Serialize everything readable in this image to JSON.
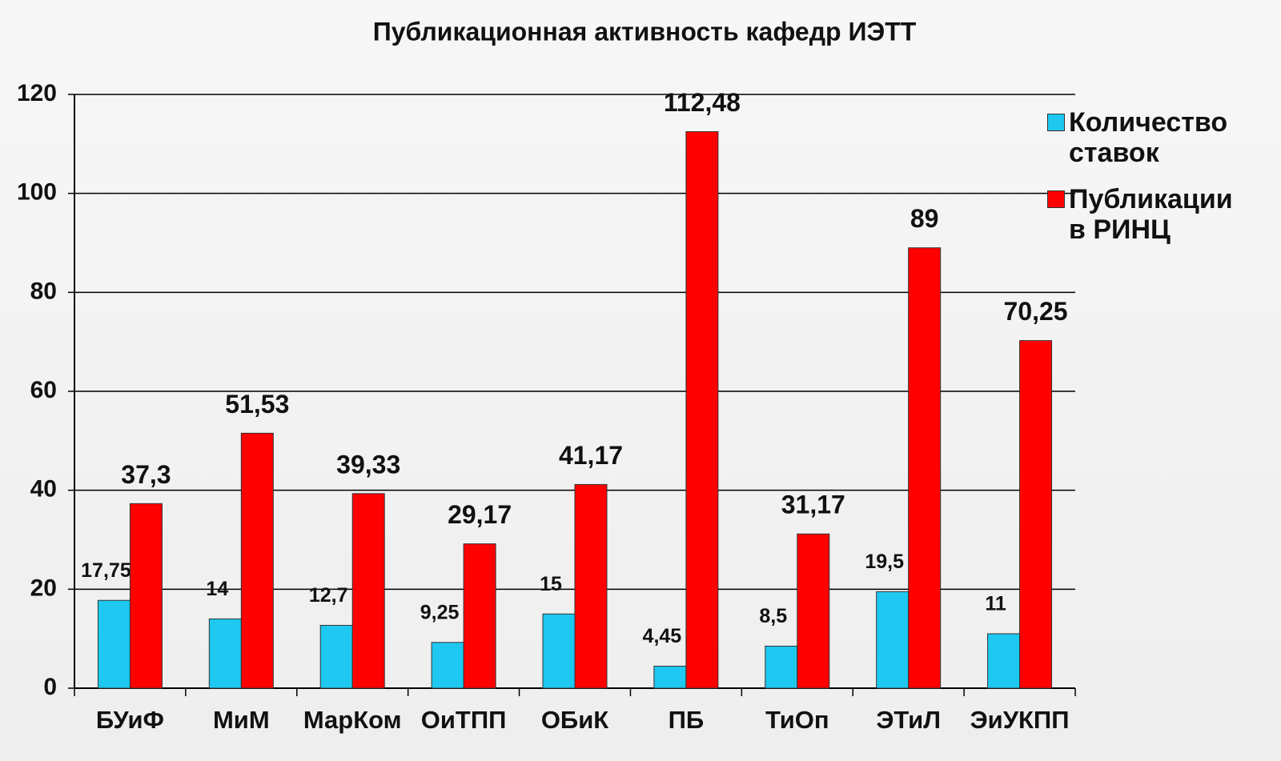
{
  "chart_data": {
    "type": "bar",
    "title": "Публикационная активность кафедр ИЭТТ",
    "categories": [
      "БУиФ",
      "МиМ",
      "МарКом",
      "ОиТПП",
      "ОБиК",
      "ПБ",
      "ТиОп",
      "ЭТиЛ",
      "ЭиУКПП"
    ],
    "series": [
      {
        "name": "Количество ставок",
        "color": "#1ec8f0",
        "values": [
          17.75,
          14,
          12.7,
          9.25,
          15,
          4.45,
          8.5,
          19.5,
          11
        ],
        "value_labels": [
          "17,75",
          "14",
          "12,7",
          "9,25",
          "15",
          "4,45",
          "8,5",
          "19,5",
          "11"
        ]
      },
      {
        "name": "Публикации в РИНЦ",
        "color": "#ff0000",
        "values": [
          37.3,
          51.53,
          39.33,
          29.17,
          41.17,
          112.48,
          31.17,
          89,
          70.25
        ],
        "value_labels": [
          "37,3",
          "51,53",
          "39,33",
          "29,17",
          "41,17",
          "112,48",
          "31,17",
          "89",
          "70,25"
        ]
      }
    ],
    "ylim": [
      0,
      120
    ],
    "yticks": [
      0,
      20,
      40,
      60,
      80,
      100,
      120
    ],
    "grid": true,
    "legend": "right"
  }
}
